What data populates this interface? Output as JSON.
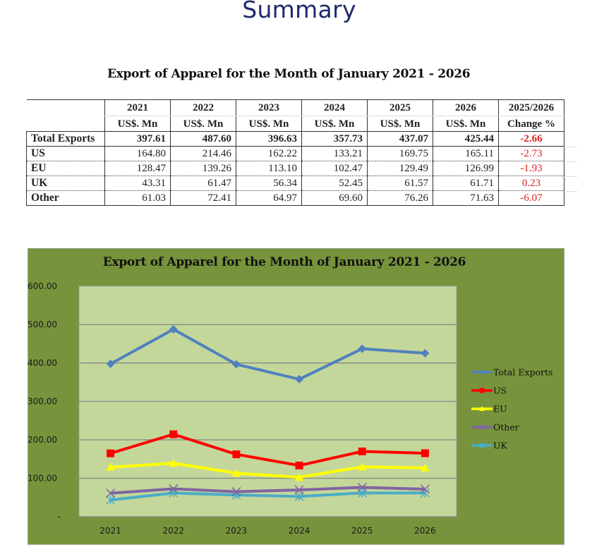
{
  "page": {
    "title": "Summary"
  },
  "table": {
    "title": "Export of Apparel for the Month of January 2021 - 2026",
    "headers": [
      {
        "year": "2021",
        "unit": "US$. Mn"
      },
      {
        "year": "2022",
        "unit": "US$. Mn"
      },
      {
        "year": "2023",
        "unit": "US$. Mn"
      },
      {
        "year": "2024",
        "unit": "US$. Mn"
      },
      {
        "year": "2025",
        "unit": "US$. Mn"
      },
      {
        "year": "2026",
        "unit": "US$. Mn"
      }
    ],
    "change_header": {
      "line1": "2025/2026",
      "line2": "Change %"
    },
    "rows": [
      {
        "label": "Total Exports",
        "values": [
          "397.61",
          "487.60",
          "396.63",
          "357.73",
          "437.07",
          "425.44"
        ],
        "change": "-2.66"
      },
      {
        "label": "US",
        "values": [
          "164.80",
          "214.46",
          "162.22",
          "133.21",
          "169.75",
          "165.11"
        ],
        "change": "-2.73"
      },
      {
        "label": "EU",
        "values": [
          "128.47",
          "139.26",
          "113.10",
          "102.47",
          "129.49",
          "126.99"
        ],
        "change": "-1.93"
      },
      {
        "label": "UK",
        "values": [
          "43.31",
          "61.47",
          "56.34",
          "52.45",
          "61.57",
          "61.71"
        ],
        "change": "0.23"
      },
      {
        "label": "Other",
        "values": [
          "61.03",
          "72.41",
          "64.97",
          "69.60",
          "76.26",
          "71.63"
        ],
        "change": "-6.07"
      }
    ],
    "change_color": "#e02020"
  },
  "chart_data": {
    "type": "line",
    "title": "Export of Apparel for the Month of January 2021 - 2026",
    "xlabel": "",
    "ylabel": "",
    "categories": [
      "2021",
      "2022",
      "2023",
      "2024",
      "2025",
      "2026"
    ],
    "ylim": [
      0,
      600
    ],
    "yticks": [
      0,
      100,
      200,
      300,
      400,
      500,
      600
    ],
    "ytick_labels": [
      "-",
      "100.00",
      "200.00",
      "300.00",
      "400.00",
      "500.00",
      "600.00"
    ],
    "grid": true,
    "legend_position": "right",
    "background_color": "#77933c",
    "plot_area_color": "#c4d79b",
    "series": [
      {
        "name": "Total Exports",
        "color": "#4f81bd",
        "marker": "diamond",
        "values": [
          397.61,
          487.6,
          396.63,
          357.73,
          437.07,
          425.44
        ]
      },
      {
        "name": "US",
        "color": "#ff0000",
        "marker": "square",
        "values": [
          164.8,
          214.46,
          162.22,
          133.21,
          169.75,
          165.11
        ]
      },
      {
        "name": "EU",
        "color": "#ffff00",
        "marker": "triangle",
        "values": [
          128.47,
          139.26,
          113.1,
          102.47,
          129.49,
          126.99
        ]
      },
      {
        "name": "Other",
        "color": "#8064a2",
        "marker": "x",
        "values": [
          61.03,
          72.41,
          64.97,
          69.6,
          76.26,
          71.63
        ]
      },
      {
        "name": "UK",
        "color": "#4bacc6",
        "marker": "star",
        "values": [
          43.31,
          61.47,
          56.34,
          52.45,
          61.57,
          61.71
        ]
      }
    ]
  }
}
